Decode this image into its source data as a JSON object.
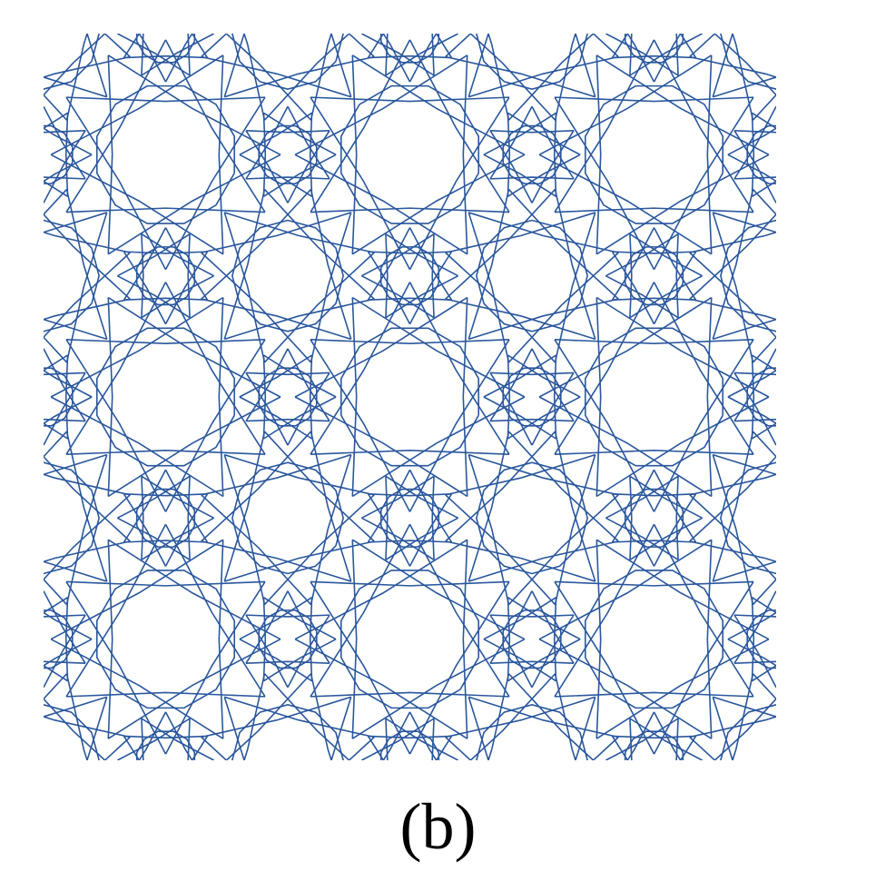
{
  "figure": {
    "caption": "(b)",
    "pattern": "girih-star-lattice",
    "rows": 3,
    "columns": 3,
    "star_points": 12,
    "line_color": "#2a579d",
    "background_color": "#ffffff"
  }
}
